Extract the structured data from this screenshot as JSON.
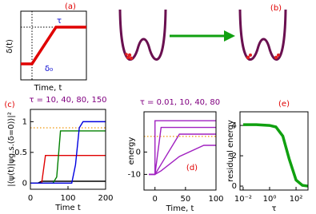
{
  "diagrams": {
    "a": {
      "panel_label": "(a)",
      "y_label": "δ(t)",
      "tau": "τ",
      "delta0": "δ₀",
      "x_label": "Time,  t"
    },
    "b": {
      "panel_label": "(b)"
    }
  },
  "chart_data": [
    {
      "type": "line",
      "panel_label": "(c)",
      "title": "τ = 10, 40, 80, 150",
      "title_color": "#800080",
      "x_label": "Time  t",
      "y_label": "|⟨ψ(t)|ψg.s.(δ=0)⟩|²",
      "x": [
        0,
        10,
        20,
        30,
        40,
        50,
        60,
        70,
        80,
        90,
        100,
        110,
        120,
        130,
        140,
        150,
        160,
        170,
        180,
        190,
        200
      ],
      "series": [
        {
          "color": "#000000",
          "values": [
            0,
            0,
            0,
            0.03,
            0.03,
            0.03,
            0.03,
            0.03,
            0.03,
            0.03,
            0.03,
            0.03,
            0.03,
            0.03,
            0.03,
            0.03,
            0.03,
            0.03,
            0.03,
            0.03,
            0.03
          ]
        },
        {
          "color": "#e00000",
          "values": [
            0,
            0,
            0,
            0,
            0.45,
            0.45,
            0.45,
            0.45,
            0.45,
            0.45,
            0.45,
            0.45,
            0.45,
            0.45,
            0.45,
            0.45,
            0.45,
            0.45,
            0.45,
            0.45,
            0.45
          ]
        },
        {
          "color": "#008000",
          "values": [
            0,
            0,
            0,
            0,
            0,
            0,
            0,
            0.1,
            0.85,
            0.85,
            0.85,
            0.85,
            0.85,
            0.85,
            0.85,
            0.85,
            0.85,
            0.85,
            0.85,
            0.85,
            0.85
          ]
        },
        {
          "color": "#0000e0",
          "values": [
            0,
            0,
            0,
            0,
            0,
            0,
            0,
            0,
            0,
            0,
            0,
            0,
            0.3,
            0.9,
            1,
            1,
            1,
            1,
            1,
            1,
            1
          ]
        }
      ],
      "reference_line": {
        "value": 0.9,
        "color": "#f0a020"
      },
      "xlim": [
        0,
        200
      ],
      "ylim": [
        -0.1,
        1.2
      ],
      "xticks": [
        0,
        100,
        200
      ],
      "yticks": [
        0,
        0.5,
        1
      ]
    },
    {
      "type": "line",
      "panel_label": "(d)",
      "title": "τ = 0.01, 10, 40, 80",
      "title_color": "#800080",
      "x_label": "Time,  t",
      "y_label": "energy",
      "x": [
        -10,
        0,
        0.01,
        10,
        40,
        80,
        100
      ],
      "series": [
        {
          "color": "#a020c0",
          "values": [
            -10,
            -10,
            14,
            14,
            14,
            14,
            14
          ]
        },
        {
          "color": "#a020c0",
          "values": [
            -10,
            -10,
            -9.98,
            11,
            11,
            11,
            11
          ]
        },
        {
          "color": "#a020c0",
          "values": [
            -10,
            -10,
            -10,
            -5.5,
            8,
            8,
            8
          ]
        },
        {
          "color": "#a020c0",
          "values": [
            -10,
            -10,
            -10,
            -8.4,
            -2,
            3,
            3
          ]
        }
      ],
      "reference_line": {
        "value": 7,
        "color": "#f0a020"
      },
      "xlim": [
        -18,
        100
      ],
      "ylim": [
        -17,
        18
      ],
      "xticks": [
        0,
        50,
        100
      ],
      "yticks": [
        -10,
        0
      ]
    },
    {
      "type": "line",
      "panel_label": "(e)",
      "x_label": "τ",
      "y_label": "residual energy",
      "xlog": true,
      "x": [
        0.01,
        0.1,
        1,
        3,
        10,
        30,
        100,
        300,
        800
      ],
      "series": [
        {
          "color": "#10a010",
          "width": 3.5,
          "values": [
            4.05,
            4.05,
            4.0,
            3.9,
            3.3,
            1.8,
            0.4,
            0.05,
            0
          ]
        }
      ],
      "xlim": [
        0.0058,
        800
      ],
      "ylim": [
        -0.26,
        4.9
      ],
      "xticks": [
        {
          "value": 0.01,
          "label": "10⁻²"
        },
        {
          "value": 1,
          "label": "10⁰"
        },
        {
          "value": 100,
          "label": "10²"
        }
      ],
      "yticks": [
        0,
        2,
        4
      ]
    }
  ]
}
